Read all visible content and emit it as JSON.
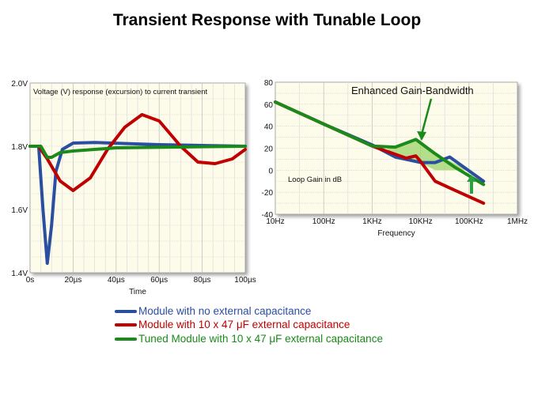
{
  "slide_title": "Transient Response with Tunable Loop",
  "colors": {
    "blue": "#2a4ea0",
    "red": "#c00000",
    "green": "#1a8a1a",
    "fill": "#9bd46a",
    "bg": "#fdfbea"
  },
  "legend": [
    {
      "label": "Module with no external capacitance",
      "color": "#2a4ea0"
    },
    {
      "label": "Module with 10 x 47 μF external capacitance",
      "color": "#c00000"
    },
    {
      "label": "Tuned Module with 10 x 47 μF external capacitance",
      "color": "#1a8a1a"
    }
  ],
  "chart_data": [
    {
      "type": "line",
      "title": "Voltage (V) response (excursion) to current transient",
      "xlabel": "Time",
      "ylabel": "",
      "xlim": [
        0,
        100
      ],
      "ylim": [
        1.4,
        2.0
      ],
      "xticks": [
        0,
        20,
        40,
        60,
        80,
        100
      ],
      "xtick_labels": [
        "0s",
        "20µs",
        "40µs",
        "60µs",
        "80µs",
        "100µs"
      ],
      "yticks": [
        1.4,
        1.6,
        1.8,
        2.0
      ],
      "ytick_labels": [
        "1.4V",
        "1.6V",
        "1.8V",
        "2.0V"
      ],
      "grid": true,
      "series": [
        {
          "name": "Module with no external capacitance",
          "color": "#2a4ea0",
          "x": [
            0,
            4,
            6,
            8,
            10,
            12,
            15,
            20,
            30,
            60,
            100
          ],
          "y": [
            1.8,
            1.8,
            1.6,
            1.43,
            1.55,
            1.72,
            1.79,
            1.81,
            1.812,
            1.805,
            1.8
          ]
        },
        {
          "name": "Module with 10 x 47 μF external capacitance",
          "color": "#c00000",
          "x": [
            0,
            4,
            8,
            14,
            20,
            28,
            36,
            44,
            52,
            60,
            70,
            78,
            86,
            94,
            100
          ],
          "y": [
            1.8,
            1.8,
            1.76,
            1.69,
            1.66,
            1.7,
            1.79,
            1.86,
            1.9,
            1.88,
            1.8,
            1.75,
            1.745,
            1.76,
            1.79
          ]
        },
        {
          "name": "Tuned Module with 10 x 47 μF external capacitance",
          "color": "#1a8a1a",
          "x": [
            0,
            5,
            8,
            10,
            14,
            20,
            40,
            100
          ],
          "y": [
            1.8,
            1.8,
            1.765,
            1.765,
            1.78,
            1.785,
            1.795,
            1.8
          ]
        }
      ]
    },
    {
      "type": "line",
      "title": "Loop Gain in dB",
      "annotation": "Enhanced Gain-Bandwidth",
      "xlabel": "Frequency",
      "xscale": "log",
      "xlim": [
        10,
        1000000
      ],
      "ylim": [
        -40,
        80
      ],
      "xticks": [
        10,
        100,
        1000,
        10000,
        100000,
        1000000
      ],
      "xtick_labels": [
        "10Hz",
        "100Hz",
        "1KHz",
        "10KHz",
        "100KHz",
        "1MHz"
      ],
      "yticks": [
        -40,
        -20,
        0,
        20,
        40,
        60,
        80
      ],
      "ytick_labels": [
        "-40",
        "-20",
        "0",
        "20",
        "40",
        "60",
        "80"
      ],
      "grid": true,
      "series": [
        {
          "name": "Module with no external capacitance",
          "color": "#2a4ea0",
          "x": [
            10,
            100,
            1000,
            3000,
            10000,
            20000,
            40000,
            200000
          ],
          "y": [
            62,
            42,
            23,
            12,
            7,
            7,
            12,
            -10
          ]
        },
        {
          "name": "Module with 10 x 47 μF external capacitance",
          "color": "#c00000",
          "x": [
            10,
            100,
            1000,
            5000,
            8000,
            10000,
            20000,
            50000,
            200000
          ],
          "y": [
            62,
            42,
            22,
            11,
            13,
            8,
            -10,
            -18,
            -30
          ]
        },
        {
          "name": "Tuned Module with 10 x 47 μF external capacitance",
          "color": "#1a8a1a",
          "x": [
            10,
            100,
            1000,
            3000,
            8000,
            20000,
            50000,
            200000
          ],
          "y": [
            62,
            42,
            22,
            21,
            28,
            15,
            3,
            -13
          ]
        }
      ]
    }
  ]
}
